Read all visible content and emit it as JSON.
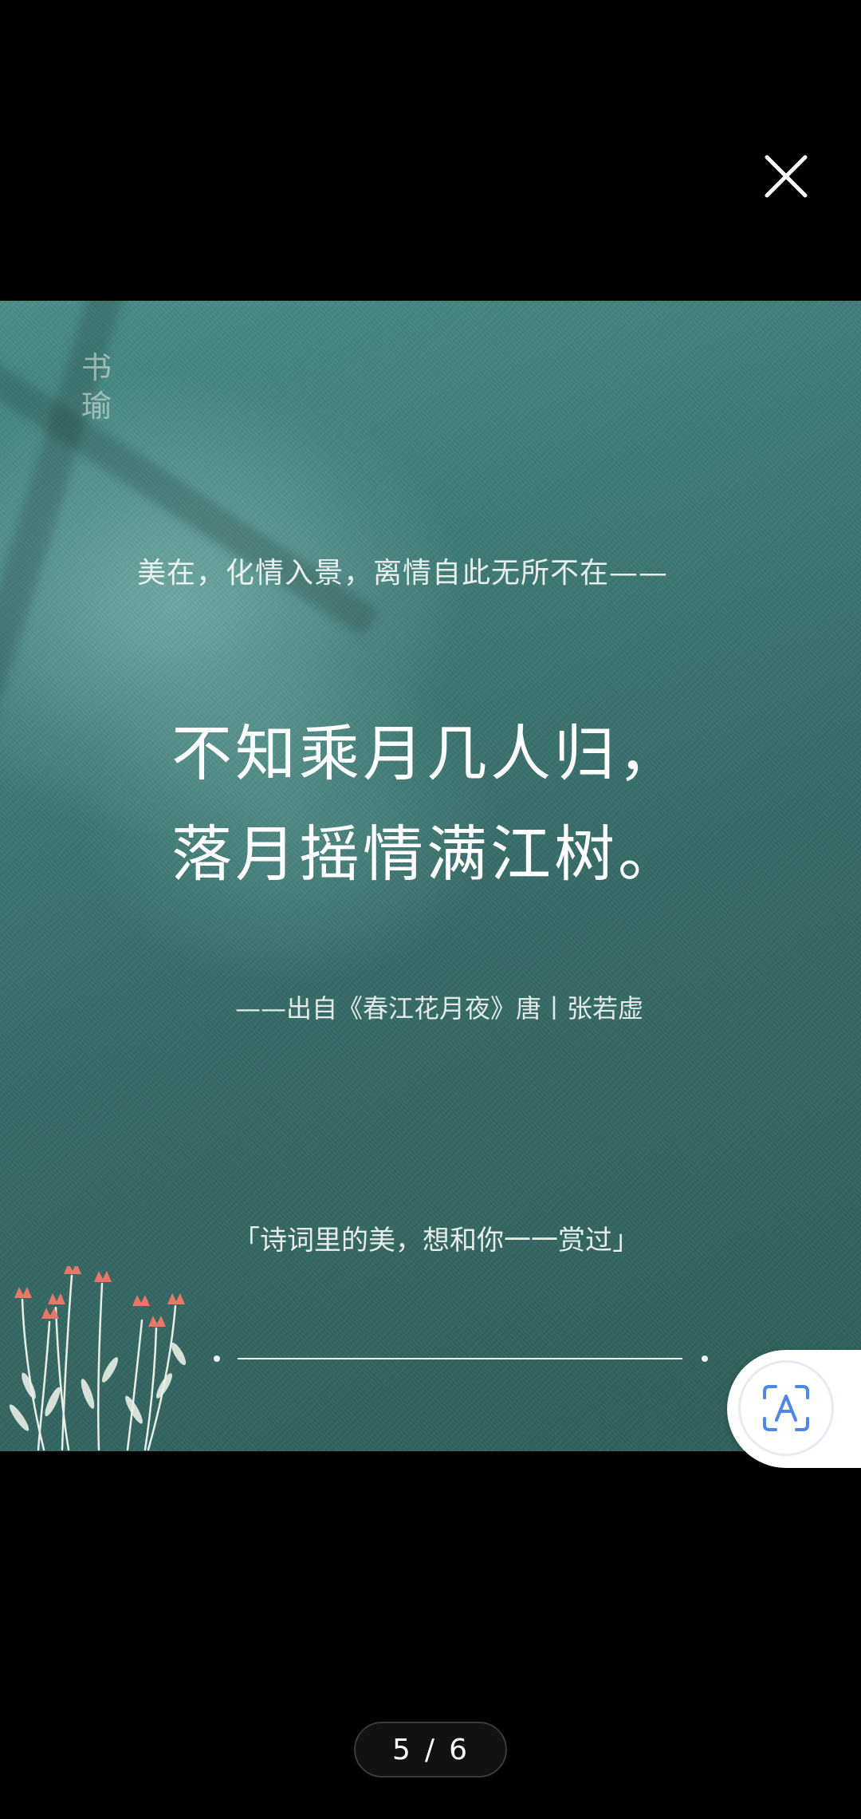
{
  "viewer": {
    "close_icon": "close-icon",
    "ocr_icon": "text-recognition-icon"
  },
  "poster": {
    "seal_text": "书瑜",
    "subtitle": "美在，化情入景，离情自此无所不在——",
    "poem": [
      "不知乘月几人归，",
      "落月摇情满江树。"
    ],
    "source": "——出自《春江花月夜》唐丨张若虚",
    "tagline": "「诗词里的美，想和你一一赏过」",
    "colors": {
      "background": "#3e7b77",
      "text": "#ffffff",
      "flower": "#e8776a"
    }
  },
  "pagination": {
    "current": "5",
    "separator": "/",
    "total": "6"
  }
}
